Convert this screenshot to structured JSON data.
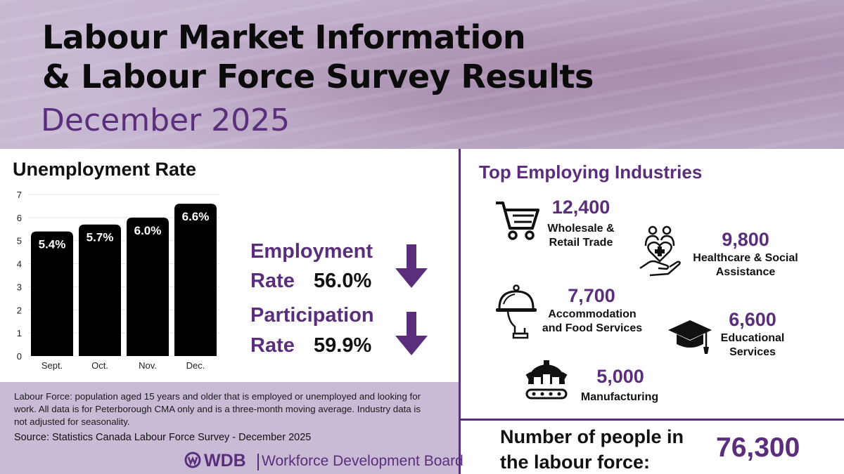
{
  "header": {
    "title_line1": "Labour Market Information",
    "title_line2": "& Labour Force Survey Results",
    "subtitle": "December 2025"
  },
  "unemployment": {
    "title": "Unemployment Rate"
  },
  "chart_data": {
    "type": "bar",
    "title": "Unemployment Rate",
    "categories": [
      "Sept.",
      "Oct.",
      "Nov.",
      "Dec."
    ],
    "values": [
      5.4,
      5.7,
      6.0,
      6.6
    ],
    "data_labels": [
      "5.4%",
      "5.7%",
      "6.0%",
      "6.6%"
    ],
    "ylim": [
      0,
      7
    ],
    "yticks": [
      "0",
      "1",
      "2",
      "3",
      "4",
      "5",
      "6",
      "7"
    ],
    "grid": true,
    "bar_color": "#000000"
  },
  "rates": {
    "employment": {
      "label_line1": "Employment",
      "label_line2": "Rate",
      "value": "56.0%",
      "trend": "down"
    },
    "participation": {
      "label_line1": "Participation",
      "label_line2": "Rate",
      "value": "59.9%",
      "trend": "down"
    }
  },
  "footnote": {
    "text": "Labour Force: population aged 15 years and older that is employed or unemployed and looking for work. All data is for Peterborough CMA only and is a three-month moving average. Industry data is not adjusted for seasonality.",
    "source": "Source: Statistics Canada Labour Force Survey - December 2025"
  },
  "logo": {
    "short": "WDB",
    "full": "Workforce Development Board"
  },
  "industries": {
    "title": "Top Employing Industries",
    "items": [
      {
        "value": "12,400",
        "label": "Wholesale &\nRetail Trade",
        "icon": "shopping-cart-icon"
      },
      {
        "value": "9,800",
        "label": "Healthcare & Social\nAssistance",
        "icon": "healthcare-hand-icon"
      },
      {
        "value": "7,700",
        "label": "Accommodation\nand Food Services",
        "icon": "food-cloche-icon"
      },
      {
        "value": "6,600",
        "label": "Educational\nServices",
        "icon": "graduation-cap-icon"
      },
      {
        "value": "5,000",
        "label": "Manufacturing",
        "icon": "factory-gear-icon"
      }
    ]
  },
  "labour_force": {
    "label": "Number of people in the labour force:",
    "value": "76,300"
  },
  "colors": {
    "accent": "#5a2e7a",
    "header_bg": "#c8b9d3",
    "footnote_bg": "#c9bbd6"
  }
}
